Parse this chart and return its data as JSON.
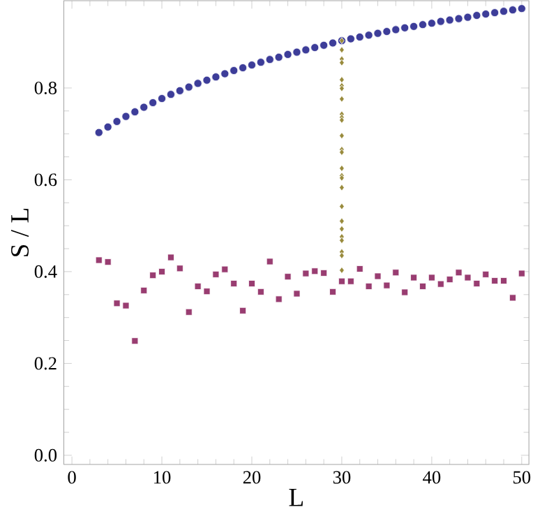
{
  "chart_data": {
    "type": "scatter",
    "xlabel": "L",
    "ylabel": "S / L",
    "xlim": [
      -0.9,
      50.8
    ],
    "ylim": [
      -0.02,
      0.99
    ],
    "xticks": [
      0,
      10,
      20,
      30,
      40,
      50
    ],
    "yticks": [
      {
        "value": 0,
        "label": "0.0"
      },
      {
        "value": 0.2,
        "label": "0.2"
      },
      {
        "value": 0.4,
        "label": "0.4"
      },
      {
        "value": 0.6,
        "label": "0.6"
      },
      {
        "value": 0.8,
        "label": "0.8"
      }
    ],
    "series": [
      {
        "color": "#3d3d99",
        "marker": "circle",
        "x": [
          3,
          4,
          5,
          6,
          7,
          8,
          9,
          10,
          11,
          12,
          13,
          14,
          15,
          16,
          17,
          18,
          19,
          20,
          21,
          22,
          23,
          24,
          25,
          26,
          27,
          28,
          29,
          30,
          31,
          32,
          33,
          34,
          35,
          36,
          37,
          38,
          39,
          40,
          41,
          42,
          43,
          44,
          45,
          46,
          47,
          48,
          49,
          50
        ],
        "values": [
          0.703,
          0.715,
          0.727,
          0.738,
          0.748,
          0.758,
          0.768,
          0.777,
          0.786,
          0.794,
          0.802,
          0.81,
          0.817,
          0.824,
          0.831,
          0.838,
          0.844,
          0.85,
          0.856,
          0.862,
          0.867,
          0.873,
          0.878,
          0.883,
          0.888,
          0.893,
          0.898,
          0.903,
          0.907,
          0.911,
          0.915,
          0.919,
          0.923,
          0.927,
          0.931,
          0.934,
          0.938,
          0.941,
          0.945,
          0.948,
          0.951,
          0.954,
          0.958,
          0.961,
          0.964,
          0.967,
          0.97,
          0.973
        ]
      },
      {
        "color": "#993d71",
        "marker": "square",
        "x": [
          3,
          4,
          5,
          6,
          7,
          8,
          9,
          10,
          11,
          12,
          13,
          14,
          15,
          16,
          17,
          18,
          19,
          20,
          21,
          22,
          23,
          24,
          25,
          26,
          27,
          28,
          29,
          30,
          31,
          32,
          33,
          34,
          35,
          36,
          37,
          38,
          39,
          40,
          41,
          42,
          43,
          44,
          45,
          46,
          47,
          48,
          49,
          50
        ],
        "values": [
          0.425,
          0.421,
          0.331,
          0.326,
          0.249,
          0.359,
          0.392,
          0.4,
          0.431,
          0.407,
          0.312,
          0.368,
          0.357,
          0.394,
          0.405,
          0.374,
          0.315,
          0.374,
          0.356,
          0.422,
          0.34,
          0.389,
          0.352,
          0.396,
          0.401,
          0.397,
          0.356,
          0.379,
          0.379,
          0.406,
          0.368,
          0.39,
          0.37,
          0.398,
          0.355,
          0.387,
          0.368,
          0.387,
          0.373,
          0.383,
          0.398,
          0.387,
          0.374,
          0.394,
          0.38,
          0.38,
          0.343,
          0.396
        ]
      },
      {
        "color": "#998b3d",
        "marker": "diamond",
        "x": [
          30,
          30,
          30,
          30,
          30,
          30,
          30,
          30,
          30,
          30,
          30,
          30,
          30,
          30,
          30,
          30,
          30,
          30,
          30,
          30,
          30,
          30,
          30,
          30,
          30,
          30
        ],
        "values": [
          0.903,
          0.883,
          0.863,
          0.855,
          0.818,
          0.805,
          0.799,
          0.776,
          0.743,
          0.736,
          0.73,
          0.696,
          0.666,
          0.66,
          0.625,
          0.609,
          0.604,
          0.583,
          0.542,
          0.51,
          0.493,
          0.476,
          0.468,
          0.443,
          0.435,
          0.403
        ]
      }
    ]
  }
}
